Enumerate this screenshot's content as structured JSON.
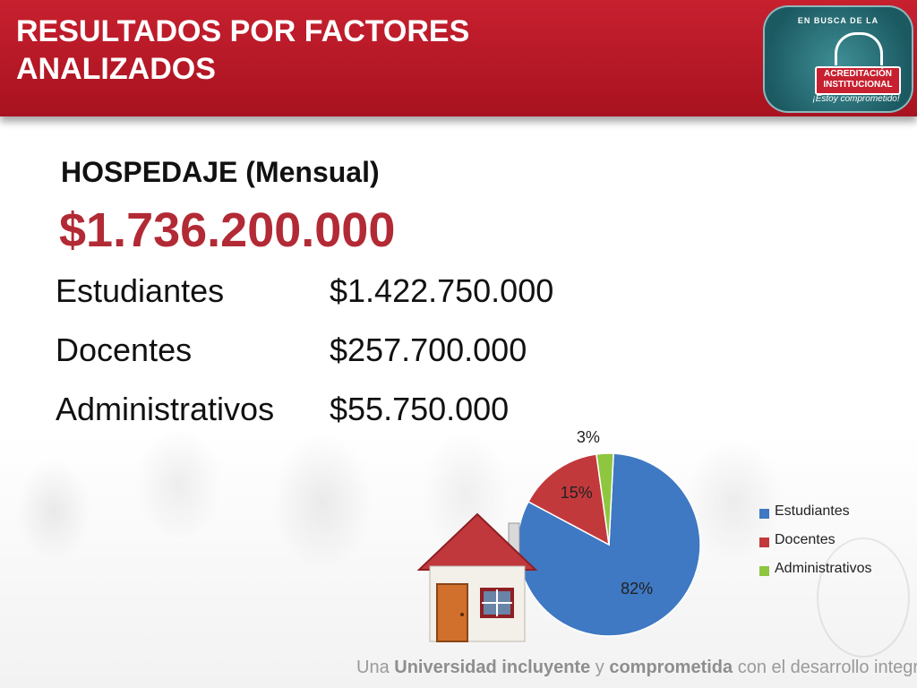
{
  "header": {
    "title": "RESULTADOS POR FACTORES ANALIZADOS",
    "logo": {
      "top_text": "EN BUSCA DE LA",
      "line1": "ACREDITACIÓN",
      "line2": "INSTITUCIONAL",
      "tagline": "¡Estoy comprometido!"
    }
  },
  "subtitle": "HOSPEDAJE (Mensual)",
  "total": "$1.736.200.000",
  "breakdown": [
    {
      "label": "Estudiantes",
      "value": "$1.422.750.000"
    },
    {
      "label": "Docentes",
      "value": "$257.700.000"
    },
    {
      "label": "Administrativos",
      "value": "$55.750.000"
    }
  ],
  "chart_data": {
    "type": "pie",
    "categories": [
      "Estudiantes",
      "Docentes",
      "Administrativos"
    ],
    "values": [
      82,
      15,
      3
    ],
    "data_labels": [
      "82%",
      "15%",
      "3%"
    ],
    "colors": [
      "#3f78c3",
      "#c2393c",
      "#8ec63f"
    ],
    "legend": "right"
  },
  "footer": {
    "part1": "Una ",
    "bold1": "Universidad incluyente",
    "part2": " y ",
    "bold2": "comprometida",
    "part3": " con el desarrollo integral"
  }
}
